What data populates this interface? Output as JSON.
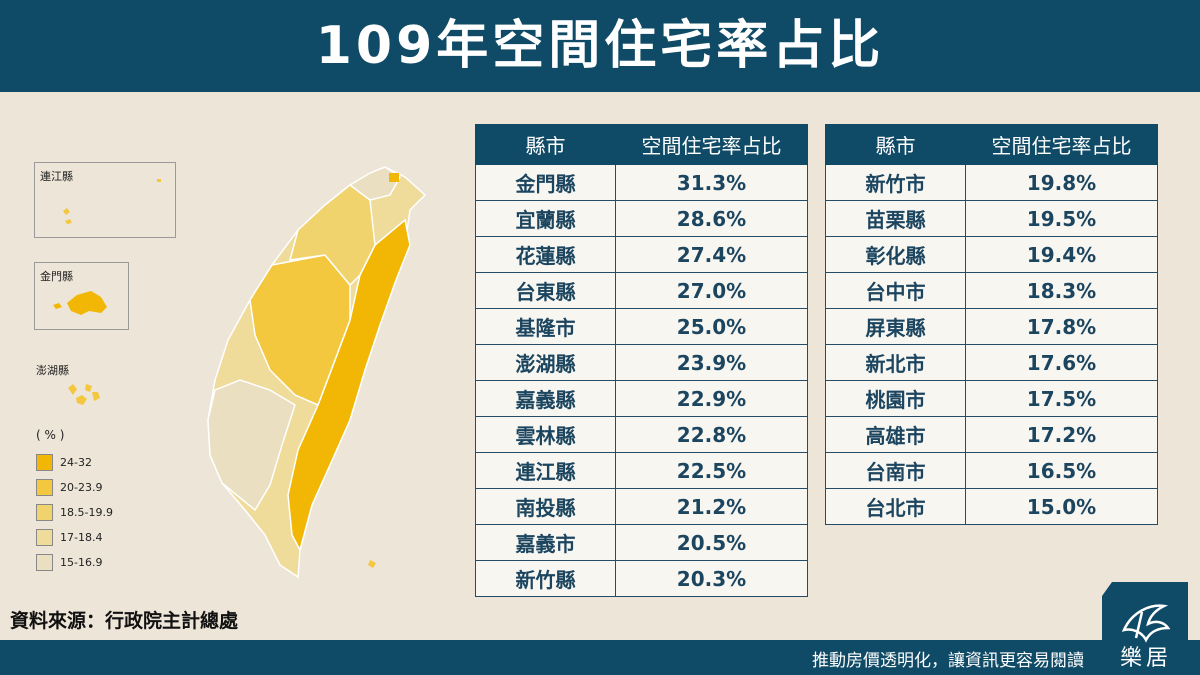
{
  "title": "109年空間住宅率占比",
  "source": "資料來源：行政院主計總處",
  "footer": {
    "slogan": "推動房價透明化，讓資訊更容易閱讀",
    "brand": "樂居"
  },
  "insets": {
    "lienchiang": "連江縣",
    "kinmen": "金門縣",
    "penghu": "澎湖縣"
  },
  "legend": {
    "unit": "( % )",
    "items": [
      {
        "label": "24-32",
        "color": "#f2b705"
      },
      {
        "label": "20-23.9",
        "color": "#f3c73e"
      },
      {
        "label": "18.5-19.9",
        "color": "#f1d36e"
      },
      {
        "label": "17-18.4",
        "color": "#efdb9a"
      },
      {
        "label": "15-16.9",
        "color": "#ebdfc2"
      }
    ]
  },
  "chart_data": {
    "type": "table",
    "columns": [
      "縣市",
      "空間住宅率占比"
    ],
    "rows": [
      [
        "金門縣",
        "31.3%"
      ],
      [
        "宜蘭縣",
        "28.6%"
      ],
      [
        "花蓮縣",
        "27.4%"
      ],
      [
        "台東縣",
        "27.0%"
      ],
      [
        "基隆市",
        "25.0%"
      ],
      [
        "澎湖縣",
        "23.9%"
      ],
      [
        "嘉義縣",
        "22.9%"
      ],
      [
        "雲林縣",
        "22.8%"
      ],
      [
        "連江縣",
        "22.5%"
      ],
      [
        "南投縣",
        "21.2%"
      ],
      [
        "嘉義市",
        "20.5%"
      ],
      [
        "新竹縣",
        "20.3%"
      ],
      [
        "新竹市",
        "19.8%"
      ],
      [
        "苗栗縣",
        "19.5%"
      ],
      [
        "彰化縣",
        "19.4%"
      ],
      [
        "台中市",
        "18.3%"
      ],
      [
        "屏東縣",
        "17.8%"
      ],
      [
        "新北市",
        "17.6%"
      ],
      [
        "桃園市",
        "17.5%"
      ],
      [
        "高雄市",
        "17.2%"
      ],
      [
        "台南市",
        "16.5%"
      ],
      [
        "台北市",
        "15.0%"
      ]
    ]
  }
}
